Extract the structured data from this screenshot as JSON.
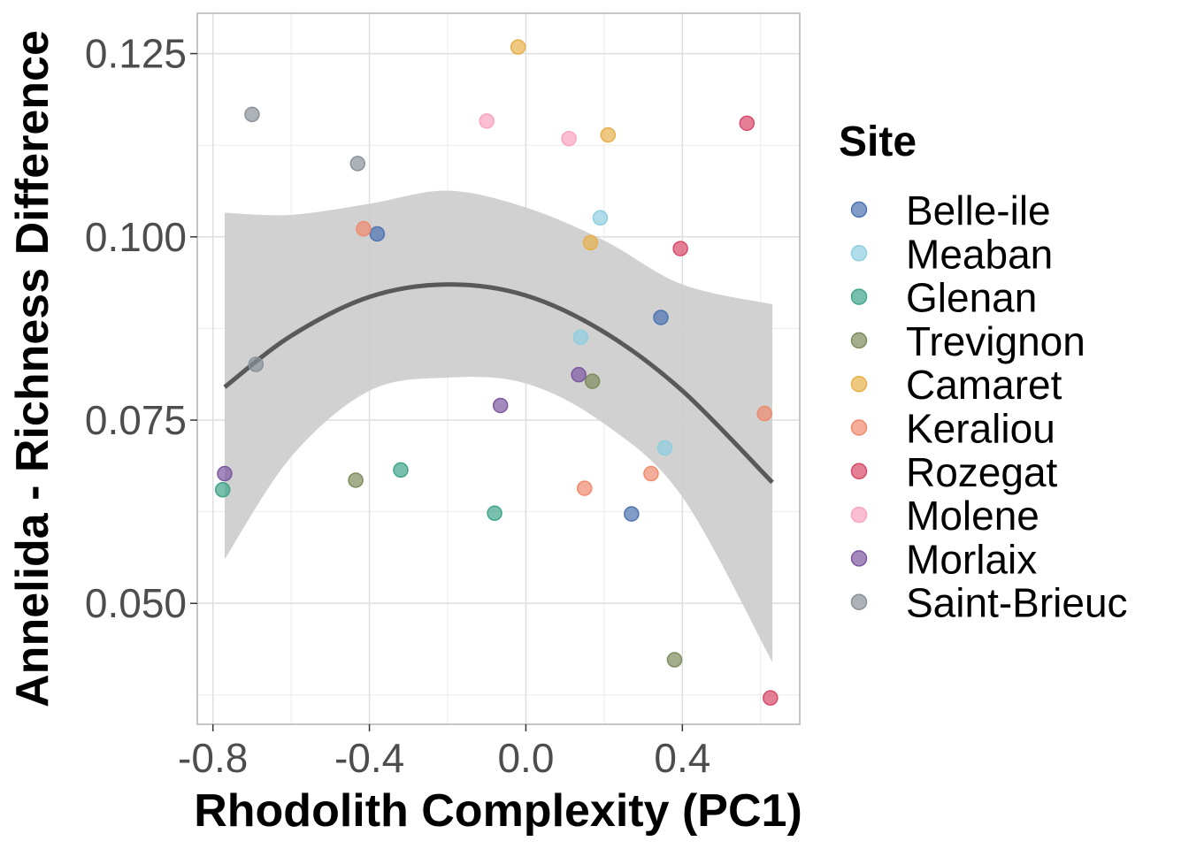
{
  "chart_data": {
    "type": "scatter",
    "xlabel": "Rhodolith Complexity (PC1)",
    "ylabel": "Annelida - Richness Difference",
    "xlim": [
      -0.84,
      0.7
    ],
    "ylim": [
      0.0335,
      0.1305
    ],
    "x_ticks": [
      -0.8,
      -0.4,
      0.0,
      0.4
    ],
    "x_tick_labels": [
      "-0.8",
      "-0.4",
      "0.0",
      "0.4"
    ],
    "y_ticks": [
      0.05,
      0.075,
      0.1,
      0.125
    ],
    "y_tick_labels": [
      "0.050",
      "0.075",
      "0.100",
      "0.125"
    ],
    "grid": true,
    "legend": {
      "title": "Site",
      "position": "right"
    },
    "series": [
      {
        "name": "Belle-ile",
        "color": "#4C72B0",
        "points": [
          [
            -0.38,
            0.1004
          ],
          [
            0.345,
            0.089
          ],
          [
            0.27,
            0.0622
          ]
        ]
      },
      {
        "name": "Meaban",
        "color": "#8ECFE0",
        "points": [
          [
            0.19,
            0.1026
          ],
          [
            0.14,
            0.0863
          ],
          [
            0.355,
            0.0712
          ]
        ]
      },
      {
        "name": "Glenan",
        "color": "#3FA58A",
        "points": [
          [
            -0.775,
            0.0655
          ],
          [
            -0.32,
            0.0682
          ],
          [
            -0.08,
            0.0623
          ]
        ]
      },
      {
        "name": "Trevignon",
        "color": "#7D8C5C",
        "points": [
          [
            -0.435,
            0.0668
          ],
          [
            0.17,
            0.0803
          ],
          [
            0.38,
            0.0423
          ]
        ]
      },
      {
        "name": "Camaret",
        "color": "#E8B04B",
        "points": [
          [
            -0.02,
            0.1259
          ],
          [
            0.21,
            0.1139
          ],
          [
            0.165,
            0.0992
          ]
        ]
      },
      {
        "name": "Keraliou",
        "color": "#F08A6C",
        "points": [
          [
            -0.415,
            0.1011
          ],
          [
            0.15,
            0.0657
          ],
          [
            0.32,
            0.0677
          ],
          [
            0.61,
            0.0759
          ]
        ]
      },
      {
        "name": "Rozegat",
        "color": "#D94A6A",
        "points": [
          [
            0.565,
            0.1155
          ],
          [
            0.395,
            0.0984
          ],
          [
            0.625,
            0.0371
          ]
        ]
      },
      {
        "name": "Molene",
        "color": "#F9A3C0",
        "points": [
          [
            -0.1,
            0.1158
          ],
          [
            0.11,
            0.1134
          ]
        ]
      },
      {
        "name": "Morlaix",
        "color": "#7E57A0",
        "points": [
          [
            -0.77,
            0.0677
          ],
          [
            -0.065,
            0.077
          ],
          [
            0.135,
            0.0812
          ]
        ]
      },
      {
        "name": "Saint-Brieuc",
        "color": "#8A9298",
        "points": [
          [
            -0.7,
            0.1167
          ],
          [
            -0.43,
            0.11
          ],
          [
            -0.69,
            0.0826
          ]
        ]
      }
    ],
    "smooth": {
      "color": "#595959",
      "ribbon_color": "#cccccc",
      "x": [
        -0.77,
        -0.6,
        -0.4,
        -0.2,
        0.0,
        0.2,
        0.4,
        0.63
      ],
      "y": [
        0.0795,
        0.0865,
        0.0918,
        0.0935,
        0.092,
        0.087,
        0.079,
        0.0665
      ],
      "lower": [
        0.056,
        0.07,
        0.079,
        0.0808,
        0.08,
        0.0745,
        0.0645,
        0.042
      ],
      "upper": [
        0.1033,
        0.103,
        0.1045,
        0.1063,
        0.104,
        0.0995,
        0.0935,
        0.0908
      ]
    }
  }
}
